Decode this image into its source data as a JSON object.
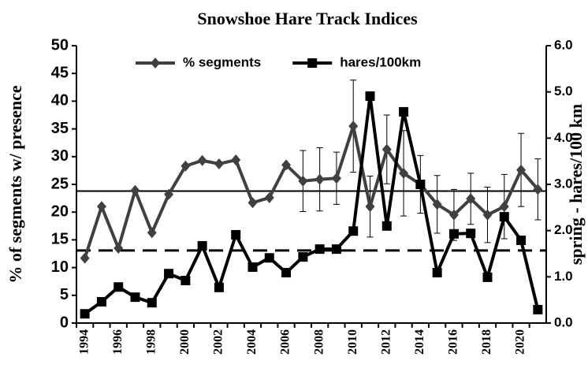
{
  "chart_data": {
    "type": "line",
    "title": "Snowshoe Hare Track Indices",
    "ylabel": "% of segments w/ presence",
    "y2label": "spring - hares/100 km",
    "categories": [
      "1994",
      null,
      "1996",
      null,
      "1998",
      null,
      "2000",
      null,
      "2002",
      null,
      "2004",
      null,
      "2006",
      null,
      "2008",
      null,
      "2010",
      null,
      "2012",
      null,
      "2014",
      null,
      "2016",
      null,
      "2018",
      null,
      "2020",
      null
    ],
    "ylim": [
      0,
      50
    ],
    "yticks": [
      0,
      5,
      10,
      15,
      20,
      25,
      30,
      35,
      40,
      45,
      50
    ],
    "y2lim": [
      0,
      6
    ],
    "y2ticks": [
      {
        "value": 0,
        "label": "0.0"
      },
      {
        "value": 1,
        "label": "1.0"
      },
      {
        "value": 2,
        "label": "2.0"
      },
      {
        "value": 3,
        "label": "3.0"
      },
      {
        "value": 4,
        "label": "4.0"
      },
      {
        "value": 5,
        "label": "5.0"
      },
      {
        "value": 6,
        "label": "6.0"
      }
    ],
    "legend": "top",
    "series": [
      {
        "name": "% segments",
        "color": "#404040",
        "marker": "diamond",
        "values": [
          11.7,
          21.0,
          13.5,
          23.9,
          16.3,
          23.2,
          28.3,
          29.3,
          28.7,
          29.4,
          21.7,
          22.6,
          28.5,
          25.6,
          25.9,
          26.1,
          35.5,
          21.0,
          31.3,
          27.0,
          25.0,
          21.4,
          19.5,
          22.4,
          19.5,
          21.0,
          27.6,
          24.1
        ],
        "errors": [
          null,
          null,
          null,
          null,
          null,
          null,
          null,
          null,
          null,
          null,
          null,
          null,
          null,
          5.5,
          5.7,
          4.7,
          8.3,
          5.5,
          6.2,
          7.7,
          5.2,
          5.2,
          4.6,
          4.6,
          5.0,
          5.8,
          6.6,
          5.5
        ]
      },
      {
        "name": "hares/100km",
        "color": "#000000",
        "marker": "square",
        "axis": "y2",
        "values": [
          0.2,
          0.46,
          0.78,
          0.56,
          0.44,
          1.07,
          0.92,
          1.67,
          0.77,
          1.91,
          1.21,
          1.41,
          1.09,
          1.43,
          1.6,
          1.6,
          1.99,
          4.91,
          2.1,
          4.57,
          3.0,
          1.09,
          1.93,
          1.94,
          0.99,
          2.3,
          1.79,
          0.29
        ]
      }
    ],
    "reference_lines": [
      {
        "value": 23.8,
        "axis": "y",
        "style": "solid"
      },
      {
        "value": 1.57,
        "axis": "y2",
        "style": "dashed"
      }
    ]
  }
}
